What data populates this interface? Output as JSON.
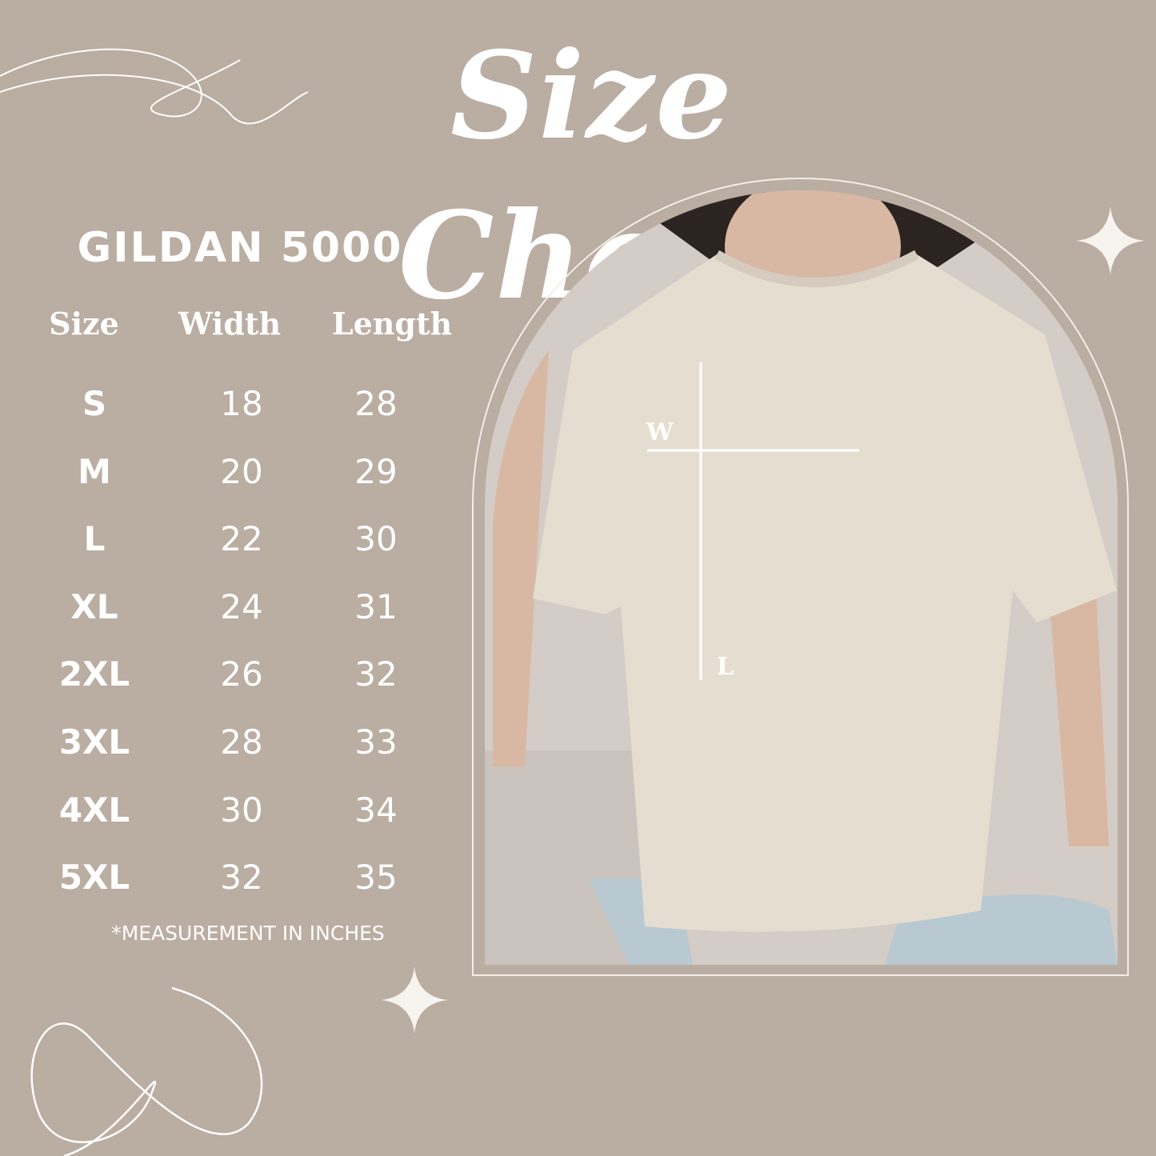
{
  "title": "Size Chart",
  "brand": "GILDAN 5000",
  "table": {
    "headers": [
      "Size",
      "Width",
      "Length"
    ],
    "rows": [
      [
        "S",
        "18",
        "28"
      ],
      [
        "M",
        "20",
        "29"
      ],
      [
        "L",
        "22",
        "30"
      ],
      [
        "XL",
        "24",
        "31"
      ],
      [
        "2XL",
        "26",
        "32"
      ],
      [
        "3XL",
        "28",
        "33"
      ],
      [
        "4XL",
        "30",
        "34"
      ],
      [
        "5XL",
        "32",
        "35"
      ]
    ]
  },
  "note": "*MEASUREMENT IN INCHES",
  "measure_labels": {
    "width": "W",
    "length": "L"
  },
  "colors": {
    "background": "#baada1",
    "text": "#ffffff",
    "shirt": "#e6ddd1"
  }
}
